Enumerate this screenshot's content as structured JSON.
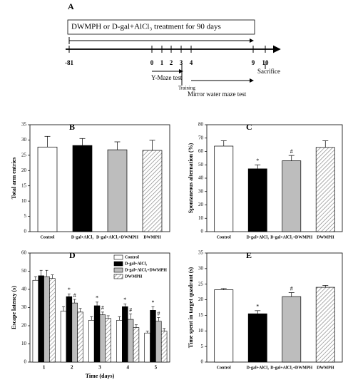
{
  "timeline": {
    "label": "A",
    "treatment": "DWMPH or D-gal+AlCl₃ treatment for 90 days",
    "ticks": [
      "-81",
      "0",
      "1",
      "2",
      "3",
      "4",
      "9",
      "10"
    ],
    "ymaze": "Y-Maze test",
    "training": "Training",
    "mirror": "Mirror water maze test",
    "sacrifice": "Sacrifice"
  },
  "chart_data": [
    {
      "type": "bar",
      "label": "B",
      "ylabel": "Total arm entries",
      "categories": [
        "Control",
        "D-gal+AlCl₃",
        "D-gal+AlCl₃+DWMPH",
        "DWMPH"
      ],
      "values": [
        27.7,
        28.2,
        26.8,
        26.6
      ],
      "errors": [
        3.5,
        2.3,
        2.6,
        3.3
      ],
      "colors": [
        "#ffffff",
        "#000000",
        "#bdbdbd",
        "#ffffff"
      ],
      "hatched": [
        false,
        false,
        false,
        true
      ],
      "markers": [
        null,
        null,
        null,
        null
      ],
      "ylim": [
        0,
        35
      ],
      "yticks": [
        0,
        5,
        10,
        15,
        20,
        25,
        30,
        35
      ]
    },
    {
      "type": "bar",
      "label": "C",
      "ylabel": "Spontaneous alternation (%)",
      "categories": [
        "Control",
        "D-gal+AlCl₃",
        "D-gal+AlCl₃+DWMPH",
        "DWMPH"
      ],
      "values": [
        64,
        47,
        53,
        63
      ],
      "errors": [
        4,
        3,
        4,
        5
      ],
      "colors": [
        "#ffffff",
        "#000000",
        "#bdbdbd",
        "#ffffff"
      ],
      "hatched": [
        false,
        false,
        false,
        true
      ],
      "markers": [
        null,
        "*",
        "#",
        null
      ],
      "ylim": [
        0,
        80
      ],
      "yticks": [
        0,
        10,
        20,
        30,
        40,
        50,
        60,
        70,
        80
      ]
    },
    {
      "type": "grouped-bar",
      "label": "D",
      "ylabel": "Escape latency (s)",
      "xlabel": "Time (days)",
      "categories": [
        "1",
        "2",
        "3",
        "4",
        "5"
      ],
      "series": [
        {
          "name": "Control",
          "color": "#ffffff",
          "hatched": false,
          "values": [
            45,
            28,
            23,
            23,
            16
          ],
          "errors": [
            2,
            2.5,
            2,
            2,
            1
          ],
          "markers": [
            null,
            null,
            null,
            null,
            null
          ]
        },
        {
          "name": "D-gal+AlCl₃",
          "color": "#000000",
          "hatched": false,
          "values": [
            47.5,
            36,
            31,
            30.5,
            28.5
          ],
          "errors": [
            3,
            1.5,
            2,
            1.5,
            2
          ],
          "markers": [
            null,
            "*",
            "*",
            "*",
            "*"
          ]
        },
        {
          "name": "D-gal+AlCl₃+DWMPH",
          "color": "#bdbdbd",
          "hatched": false,
          "values": [
            47,
            32.5,
            26,
            23.5,
            22.5
          ],
          "errors": [
            3.5,
            2,
            1.5,
            3,
            2
          ],
          "markers": [
            null,
            "#",
            "#",
            "#",
            "#"
          ]
        },
        {
          "name": "DWMPH",
          "color": "#ffffff",
          "hatched": true,
          "values": [
            46,
            27.5,
            24,
            19,
            17
          ],
          "errors": [
            2,
            2,
            1.5,
            1.5,
            1.5
          ],
          "markers": [
            null,
            null,
            null,
            null,
            null
          ]
        }
      ],
      "ylim": [
        0,
        60
      ],
      "yticks": [
        0,
        10,
        20,
        30,
        40,
        50,
        60
      ]
    },
    {
      "type": "bar",
      "label": "E",
      "ylabel": "Time spent in target quadrant (s)",
      "categories": [
        "Control",
        "D-gal+AlCl₃",
        "D-gal+AlCl₃+DWMPH",
        "DWMPH"
      ],
      "values": [
        23.2,
        15.5,
        21,
        24
      ],
      "errors": [
        0.4,
        1,
        1.3,
        0.6
      ],
      "colors": [
        "#ffffff",
        "#000000",
        "#bdbdbd",
        "#ffffff"
      ],
      "hatched": [
        false,
        false,
        false,
        true
      ],
      "markers": [
        null,
        "*",
        "#",
        null
      ],
      "ylim": [
        0,
        35
      ],
      "yticks": [
        0,
        5,
        10,
        15,
        20,
        25,
        30,
        35
      ]
    }
  ]
}
